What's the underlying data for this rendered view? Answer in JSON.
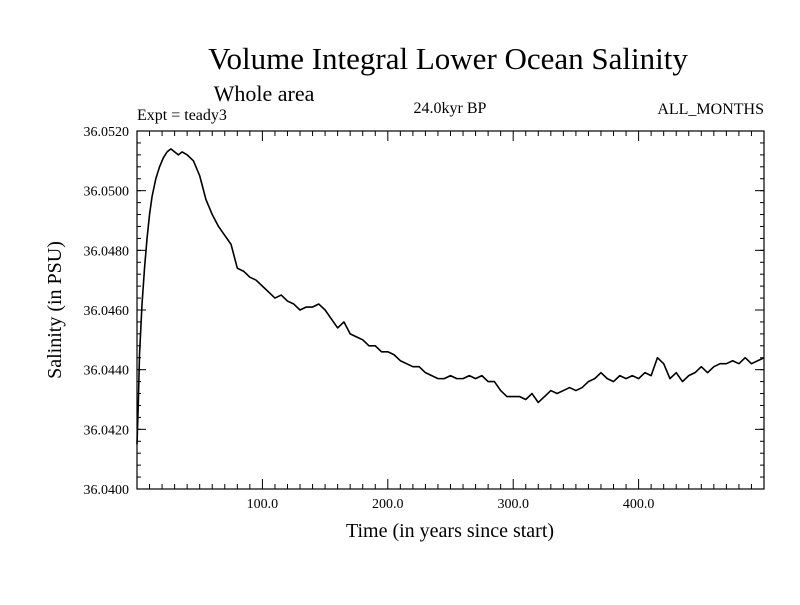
{
  "chart_data": {
    "type": "line",
    "title": "Volume Integral Lower Ocean Salinity",
    "subtitle": "Whole area",
    "experiment": "Expt = teady3",
    "period": "24.0kyr BP",
    "season": "ALL_MONTHS",
    "xlabel": "Time (in years since start)",
    "ylabel": "Salinity (in PSU)",
    "xlim": [
      0,
      500
    ],
    "ylim": [
      36.04,
      36.052
    ],
    "x_ticks": [
      100,
      200,
      300,
      400
    ],
    "x_tick_labels": [
      "100.0",
      "200.0",
      "300.0",
      "400.0"
    ],
    "y_ticks": [
      36.04,
      36.042,
      36.044,
      36.046,
      36.048,
      36.05,
      36.052
    ],
    "y_tick_labels": [
      "36.0400",
      "36.0420",
      "36.0440",
      "36.0460",
      "36.0480",
      "36.0500",
      "36.0520"
    ],
    "series": [
      {
        "name": "Lower Ocean Salinity",
        "x": [
          0,
          1,
          2,
          4,
          6,
          8,
          10,
          12,
          15,
          18,
          21,
          24,
          27,
          30,
          33,
          36,
          40,
          45,
          50,
          55,
          60,
          65,
          70,
          75,
          80,
          85,
          90,
          95,
          100,
          105,
          110,
          115,
          120,
          125,
          130,
          135,
          140,
          145,
          150,
          155,
          160,
          165,
          170,
          175,
          180,
          185,
          190,
          195,
          200,
          205,
          210,
          215,
          220,
          225,
          230,
          235,
          240,
          245,
          250,
          255,
          260,
          265,
          270,
          275,
          280,
          285,
          290,
          295,
          300,
          305,
          310,
          315,
          320,
          325,
          330,
          335,
          340,
          345,
          350,
          355,
          360,
          365,
          370,
          375,
          380,
          385,
          390,
          395,
          400,
          405,
          410,
          415,
          420,
          425,
          430,
          435,
          440,
          445,
          450,
          455,
          460,
          465,
          470,
          475,
          480,
          485,
          490,
          495,
          500
        ],
        "values": [
          36.0415,
          36.0428,
          36.0445,
          36.0462,
          36.0474,
          36.0484,
          36.0492,
          36.0498,
          36.0504,
          36.0508,
          36.0511,
          36.0513,
          36.0514,
          36.0513,
          36.0512,
          36.0513,
          36.0512,
          36.051,
          36.0505,
          36.0497,
          36.0492,
          36.0488,
          36.0485,
          36.0482,
          36.0474,
          36.0473,
          36.0471,
          36.047,
          36.0468,
          36.0466,
          36.0464,
          36.0465,
          36.0463,
          36.0462,
          36.046,
          36.0461,
          36.0461,
          36.0462,
          36.046,
          36.0457,
          36.0454,
          36.0456,
          36.0452,
          36.0451,
          36.045,
          36.0448,
          36.0448,
          36.0446,
          36.0446,
          36.0445,
          36.0443,
          36.0442,
          36.0441,
          36.0441,
          36.0439,
          36.0438,
          36.0437,
          36.0437,
          36.0438,
          36.0437,
          36.0437,
          36.0438,
          36.0437,
          36.0438,
          36.0436,
          36.0436,
          36.0433,
          36.0431,
          36.0431,
          36.0431,
          36.043,
          36.0432,
          36.0429,
          36.0431,
          36.0433,
          36.0432,
          36.0433,
          36.0434,
          36.0433,
          36.0434,
          36.0436,
          36.0437,
          36.0439,
          36.0437,
          36.0436,
          36.0438,
          36.0437,
          36.0438,
          36.0437,
          36.0439,
          36.0438,
          36.0444,
          36.0442,
          36.0437,
          36.0439,
          36.0436,
          36.0438,
          36.0439,
          36.0441,
          36.0439,
          36.0441,
          36.0442,
          36.0442,
          36.0443,
          36.0442,
          36.0444,
          36.0442,
          36.0443,
          36.0444
        ]
      }
    ]
  }
}
